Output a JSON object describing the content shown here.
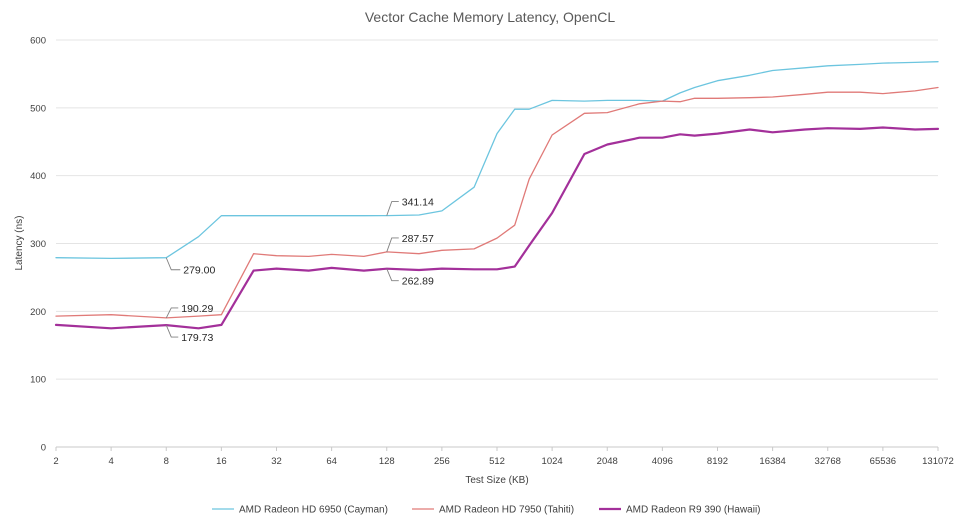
{
  "chart_data": {
    "type": "line",
    "title": "Vector Cache Memory Latency, OpenCL",
    "xlabel": "Test Size (KB)",
    "ylabel": "Latency (ns)",
    "ylim": [
      0,
      600
    ],
    "yticks": [
      "0",
      "100",
      "200",
      "300",
      "400",
      "500",
      "600"
    ],
    "grid": true,
    "legend_position": "bottom",
    "x_labels": [
      "2",
      "4",
      "8",
      "16",
      "32",
      "64",
      "128",
      "256",
      "512",
      "1024",
      "2048",
      "4096",
      "8192",
      "16384",
      "32768",
      "65536",
      "131072"
    ],
    "x": [
      2,
      4,
      8,
      12,
      16,
      24,
      32,
      48,
      64,
      96,
      128,
      192,
      256,
      384,
      512,
      640,
      768,
      1024,
      1536,
      2048,
      3072,
      4096,
      5120,
      6144,
      8192,
      12288,
      16384,
      24576,
      32768,
      49152,
      65536,
      98304,
      131072
    ],
    "series": [
      {
        "name": "AMD Radeon HD 6950 (Cayman)",
        "color": "#6cc5df",
        "width": 1.3,
        "values": [
          279,
          278,
          279,
          310,
          341,
          341,
          341,
          341,
          341,
          341,
          341.14,
          342,
          348,
          383,
          462,
          498,
          498,
          511,
          510,
          511,
          511,
          510,
          522,
          530,
          540,
          548,
          555,
          559,
          562,
          564,
          566,
          567,
          568
        ]
      },
      {
        "name": "AMD Radeon HD 7950 (Tahiti)",
        "color": "#e07a78",
        "width": 1.3,
        "values": [
          193,
          195,
          190.29,
          193,
          195,
          285,
          282,
          281,
          284,
          281,
          287.57,
          285,
          290,
          292,
          308,
          327,
          395,
          460,
          492,
          493,
          506,
          510,
          509,
          514,
          514,
          515,
          516,
          520,
          523,
          523,
          521,
          525,
          530
        ]
      },
      {
        "name": "AMD Radeon R9 390 (Hawaii)",
        "color": "#a3309a",
        "width": 2.2,
        "values": [
          180,
          175,
          179.73,
          175,
          180,
          260,
          263,
          260,
          264,
          260,
          262.89,
          261,
          263,
          262,
          262,
          266,
          297,
          345,
          432,
          446,
          456,
          456,
          461,
          459,
          462,
          468,
          464,
          468,
          470,
          469,
          471,
          468,
          469
        ]
      }
    ],
    "annotations": [
      {
        "series": 0,
        "x": 8,
        "value": 279.0,
        "text": "279.00"
      },
      {
        "series": 0,
        "x": 128,
        "value": 341.14,
        "text": "341.14"
      },
      {
        "series": 1,
        "x": 8,
        "value": 190.29,
        "text": "190.29"
      },
      {
        "series": 1,
        "x": 128,
        "value": 287.57,
        "text": "287.57"
      },
      {
        "series": 2,
        "x": 8,
        "value": 179.73,
        "text": "179.73"
      },
      {
        "series": 2,
        "x": 128,
        "value": 262.89,
        "text": "262.89"
      }
    ]
  }
}
